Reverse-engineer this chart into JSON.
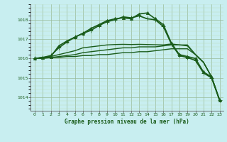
{
  "title": "Graphe pression niveau de la mer (hPa)",
  "background_color": "#c8eef0",
  "grid_color_major": "#99bb99",
  "grid_color_minor": "#bbddbb",
  "line_color": "#1a5c1a",
  "xlim": [
    -0.5,
    23.5
  ],
  "ylim": [
    1013.3,
    1018.8
  ],
  "yticks": [
    1014,
    1015,
    1016,
    1017,
    1018
  ],
  "xticks": [
    0,
    1,
    2,
    3,
    4,
    5,
    6,
    7,
    8,
    9,
    10,
    11,
    12,
    13,
    14,
    15,
    16,
    17,
    18,
    19,
    20,
    21,
    22,
    23
  ],
  "series": [
    {
      "x": [
        0,
        1,
        2,
        3,
        4,
        5,
        6,
        7,
        8,
        9,
        10,
        11,
        12,
        13,
        14,
        15,
        16,
        17,
        18,
        19,
        20,
        21,
        22,
        23
      ],
      "y": [
        1016.0,
        1016.0,
        1016.05,
        1016.05,
        1016.1,
        1016.1,
        1016.15,
        1016.15,
        1016.2,
        1016.2,
        1016.25,
        1016.3,
        1016.3,
        1016.35,
        1016.35,
        1016.4,
        1016.45,
        1016.5,
        1016.5,
        1016.5,
        1016.2,
        1015.8,
        1015.05,
        1013.85
      ],
      "marker": null,
      "lw": 1.0,
      "ms": 3
    },
    {
      "x": [
        0,
        1,
        2,
        3,
        4,
        5,
        6,
        7,
        8,
        9,
        10,
        11,
        12,
        13,
        14,
        15,
        16,
        17,
        18,
        19,
        20,
        21,
        22,
        23
      ],
      "y": [
        1016.0,
        1016.05,
        1016.05,
        1016.1,
        1016.15,
        1016.2,
        1016.3,
        1016.35,
        1016.4,
        1016.45,
        1016.5,
        1016.55,
        1016.55,
        1016.6,
        1016.6,
        1016.6,
        1016.65,
        1016.7,
        1016.7,
        1016.7,
        1016.2,
        1015.8,
        1015.05,
        1013.85
      ],
      "marker": null,
      "lw": 1.0,
      "ms": 3
    },
    {
      "x": [
        0,
        1,
        2,
        3,
        4,
        5,
        6,
        7,
        8,
        9,
        10,
        11,
        12,
        13,
        14,
        15,
        16,
        17,
        18,
        19,
        20,
        21,
        22,
        23
      ],
      "y": [
        1016.0,
        1016.05,
        1016.1,
        1016.2,
        1016.3,
        1016.4,
        1016.55,
        1016.6,
        1016.65,
        1016.7,
        1016.72,
        1016.73,
        1016.72,
        1016.73,
        1016.72,
        1016.71,
        1016.7,
        1016.75,
        1016.7,
        1016.65,
        1016.2,
        1015.8,
        1015.05,
        1013.85
      ],
      "marker": null,
      "lw": 1.0,
      "ms": 3
    },
    {
      "x": [
        0,
        1,
        2,
        3,
        4,
        5,
        6,
        7,
        8,
        9,
        10,
        11,
        12,
        13,
        14,
        15,
        16,
        17,
        18,
        19,
        20,
        21,
        22,
        23
      ],
      "y": [
        1016.0,
        1016.05,
        1016.1,
        1016.65,
        1016.9,
        1017.1,
        1017.3,
        1017.55,
        1017.75,
        1017.95,
        1018.05,
        1018.1,
        1018.05,
        1018.3,
        1018.35,
        1018.05,
        1017.75,
        1016.8,
        1016.2,
        1016.1,
        1016.0,
        1015.3,
        1015.05,
        1013.85
      ],
      "marker": "^",
      "lw": 1.2,
      "ms": 3
    },
    {
      "x": [
        0,
        1,
        2,
        3,
        4,
        5,
        6,
        7,
        8,
        9,
        10,
        11,
        12,
        13,
        14,
        15,
        16,
        17,
        18,
        19,
        20,
        21,
        22,
        23
      ],
      "y": [
        1016.0,
        1016.05,
        1016.15,
        1016.55,
        1016.85,
        1017.1,
        1017.3,
        1017.45,
        1017.7,
        1017.9,
        1018.0,
        1018.15,
        1018.1,
        1018.2,
        1018.05,
        1018.0,
        1017.65,
        1016.75,
        1016.15,
        1016.05,
        1015.9,
        1015.25,
        1015.0,
        1013.85
      ],
      "marker": "+",
      "lw": 1.2,
      "ms": 4
    }
  ]
}
